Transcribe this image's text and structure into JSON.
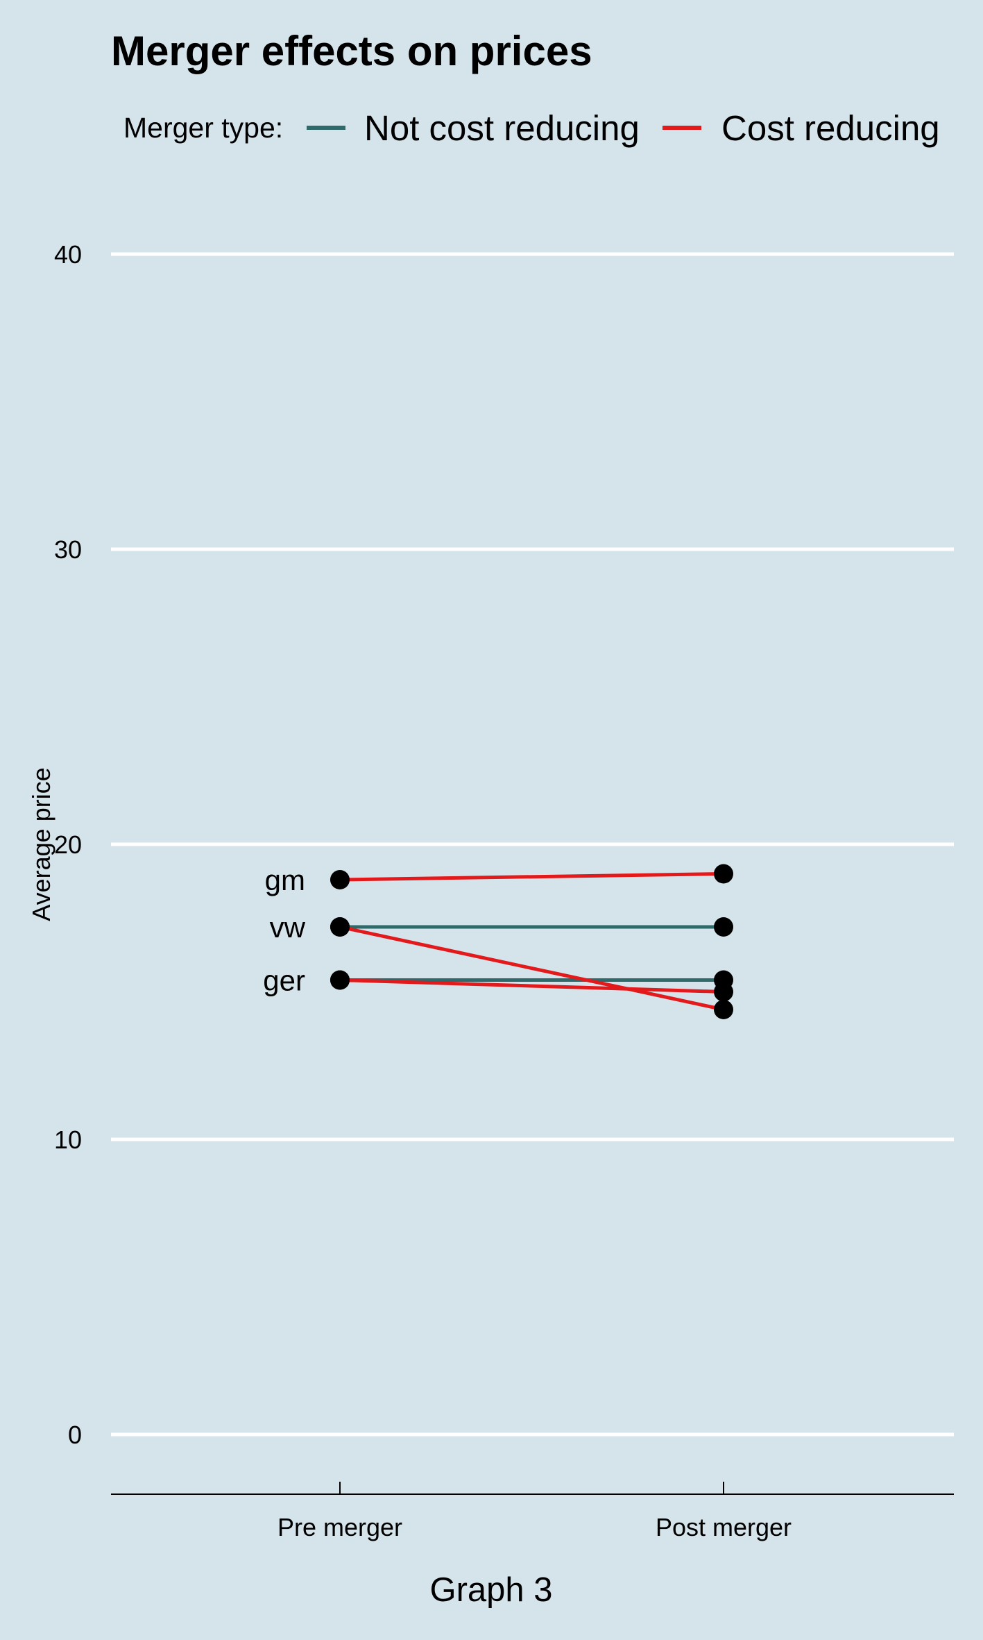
{
  "chart_data": {
    "type": "line",
    "title": "Merger effects on prices",
    "xlabel": "Graph 3",
    "ylabel": "Average price",
    "categories": [
      "Pre merger",
      "Post merger"
    ],
    "ylim": [
      -2,
      42
    ],
    "yticks": [
      0,
      10,
      20,
      30,
      40
    ],
    "grid": "horizontal",
    "legend": {
      "position": "top",
      "title": "Merger type:",
      "entries": [
        {
          "label": "Not cost reducing",
          "color": "#2f6a6b"
        },
        {
          "label": "Cost reducing",
          "color": "#e31a1c"
        }
      ]
    },
    "series": [
      {
        "group": "Not cost reducing",
        "firm": "vw",
        "values": [
          17.2,
          17.2
        ],
        "color": "#2f6a6b"
      },
      {
        "group": "Not cost reducing",
        "firm": "ger",
        "values": [
          15.4,
          15.4
        ],
        "color": "#2f6a6b"
      },
      {
        "group": "Cost reducing",
        "firm": "gm",
        "values": [
          18.8,
          19.0
        ],
        "color": "#e31a1c"
      },
      {
        "group": "Cost reducing",
        "firm": "vw",
        "values": [
          17.2,
          14.4
        ],
        "color": "#e31a1c"
      },
      {
        "group": "Cost reducing",
        "firm": "ger",
        "values": [
          15.4,
          15.0
        ],
        "color": "#e31a1c"
      }
    ],
    "point_labels": [
      {
        "text": "gm",
        "value": 18.8
      },
      {
        "text": "vw",
        "value": 17.2
      },
      {
        "text": "ger",
        "value": 15.4
      }
    ]
  },
  "colors": {
    "background": "#d5e4eb",
    "grid": "#ffffff",
    "axis": "#000000",
    "point": "#000000"
  }
}
